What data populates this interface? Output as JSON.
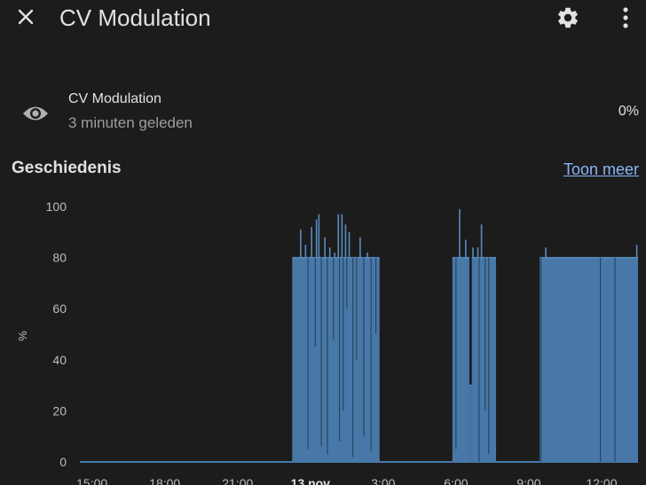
{
  "header": {
    "title": "CV Modulation",
    "close_icon": "close-icon",
    "settings_icon": "gear-icon",
    "more_icon": "more-vertical-icon"
  },
  "entity": {
    "name": "CV Modulation",
    "last_changed": "3 minuten geleden",
    "value": "0%",
    "icon": "eye-icon"
  },
  "history": {
    "title": "Geschiedenis",
    "show_more": "Toon meer"
  },
  "chart_data": {
    "type": "area",
    "ylabel": "%",
    "ylim": [
      0,
      100
    ],
    "yticks": [
      0,
      20,
      40,
      60,
      80,
      100
    ],
    "x_unit": "hours since 14:30 on 12 nov",
    "xlim": [
      0,
      23
    ],
    "xticks": [
      {
        "x": 0.5,
        "label": "15:00",
        "bold": false
      },
      {
        "x": 3.5,
        "label": "18:00",
        "bold": false
      },
      {
        "x": 6.5,
        "label": "21:00",
        "bold": false
      },
      {
        "x": 9.5,
        "label": "13 nov",
        "bold": true
      },
      {
        "x": 12.5,
        "label": "3:00",
        "bold": false
      },
      {
        "x": 15.5,
        "label": "6:00",
        "bold": false
      },
      {
        "x": 18.5,
        "label": "9:00",
        "bold": false
      },
      {
        "x": 21.5,
        "label": "12:00",
        "bold": false
      }
    ],
    "color": "#4878a8",
    "segments": [
      {
        "start": 8.75,
        "end": 12.35,
        "level": 80
      },
      {
        "start": 15.35,
        "end": 16.05,
        "level": 80
      },
      {
        "start": 16.05,
        "end": 16.15,
        "level": 30
      },
      {
        "start": 16.15,
        "end": 17.15,
        "level": 80
      },
      {
        "start": 18.95,
        "end": 23.0,
        "level": 80
      }
    ],
    "spikes": [
      {
        "x": 9.1,
        "y": 91
      },
      {
        "x": 9.3,
        "y": 85
      },
      {
        "x": 9.55,
        "y": 92
      },
      {
        "x": 9.75,
        "y": 95
      },
      {
        "x": 9.85,
        "y": 97
      },
      {
        "x": 10.1,
        "y": 88
      },
      {
        "x": 10.3,
        "y": 84
      },
      {
        "x": 10.5,
        "y": 82
      },
      {
        "x": 10.65,
        "y": 97
      },
      {
        "x": 10.8,
        "y": 97
      },
      {
        "x": 10.95,
        "y": 93
      },
      {
        "x": 11.1,
        "y": 90
      },
      {
        "x": 11.55,
        "y": 88
      },
      {
        "x": 11.85,
        "y": 82
      },
      {
        "x": 15.65,
        "y": 99
      },
      {
        "x": 15.9,
        "y": 87
      },
      {
        "x": 16.2,
        "y": 84
      },
      {
        "x": 16.4,
        "y": 84
      },
      {
        "x": 16.55,
        "y": 93
      },
      {
        "x": 19.2,
        "y": 84
      },
      {
        "x": 22.95,
        "y": 85
      }
    ],
    "dips": [
      {
        "x": 9.4,
        "y": 5
      },
      {
        "x": 9.7,
        "y": 45
      },
      {
        "x": 9.95,
        "y": 6
      },
      {
        "x": 10.2,
        "y": 3
      },
      {
        "x": 10.45,
        "y": 48
      },
      {
        "x": 10.7,
        "y": 8
      },
      {
        "x": 10.85,
        "y": 20
      },
      {
        "x": 11.0,
        "y": 60
      },
      {
        "x": 11.25,
        "y": 2
      },
      {
        "x": 11.4,
        "y": 40
      },
      {
        "x": 11.7,
        "y": 10
      },
      {
        "x": 12.0,
        "y": 4
      },
      {
        "x": 12.2,
        "y": 50
      },
      {
        "x": 15.5,
        "y": 5
      },
      {
        "x": 16.45,
        "y": 0
      },
      {
        "x": 16.7,
        "y": 20
      },
      {
        "x": 16.85,
        "y": 3
      },
      {
        "x": 19.0,
        "y": 0
      },
      {
        "x": 21.45,
        "y": 0
      },
      {
        "x": 22.05,
        "y": 0
      }
    ]
  }
}
